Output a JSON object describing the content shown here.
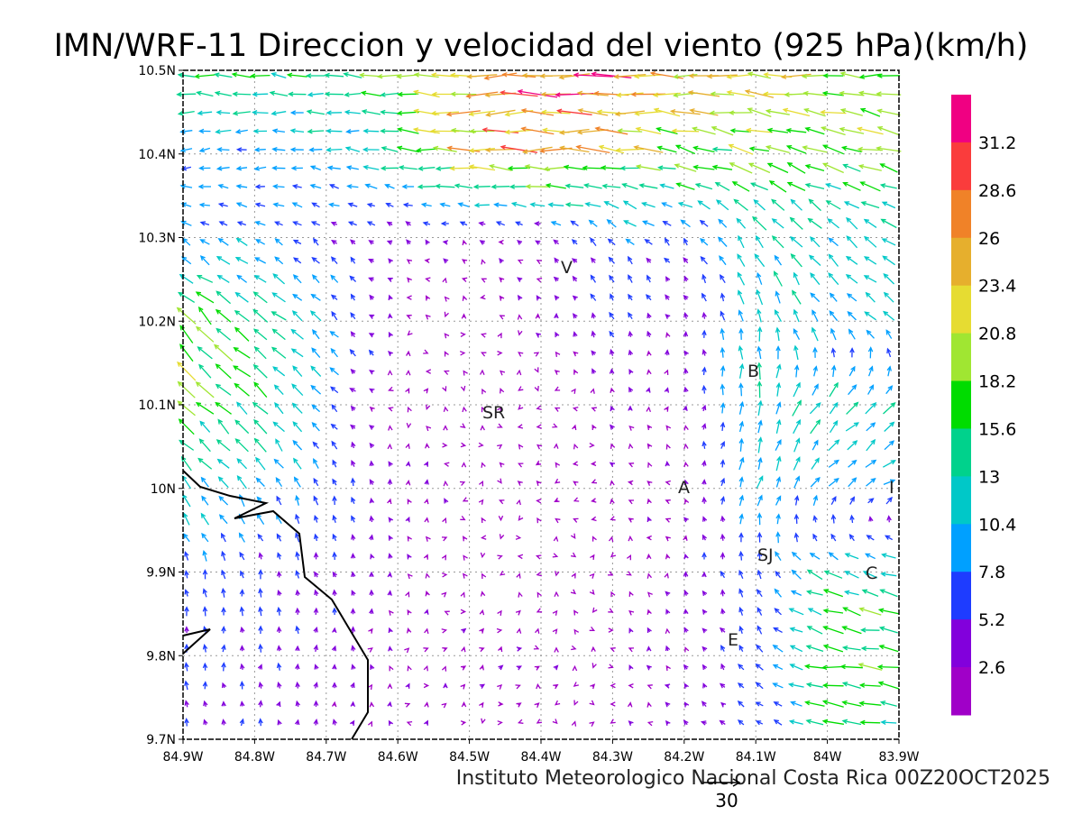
{
  "title": "IMN/WRF-11 Direccion y velocidad del viento (925 hPa)(km/h)",
  "footer": "Instituto Meteorologico Nacional Costa Rica 00Z20OCT2025",
  "reference_vector": {
    "value": 30,
    "label": "30"
  },
  "chart_data": {
    "type": "vector-field",
    "units": "km/h",
    "level": "925 hPa",
    "lon_ticks": [
      "84.9W",
      "84.8W",
      "84.7W",
      "84.6W",
      "84.5W",
      "84.4W",
      "84.3W",
      "84.2W",
      "84.1W",
      "84W",
      "83.9W"
    ],
    "lat_ticks": [
      "10.5N",
      "10.4N",
      "10.3N",
      "10.2N",
      "10.1N",
      "10N",
      "9.9N",
      "9.8N",
      "9.7N"
    ],
    "lon_range": [
      -84.9,
      -83.9
    ],
    "lat_range": [
      9.7,
      10.5
    ],
    "grid_note": "u,v (km/h) at lat rows 10.5N..9.7N, lon cols 84.9W..83.9W",
    "u": [
      [
        -16,
        -15,
        -14,
        -18,
        -25,
        -29,
        -28,
        -24,
        -22,
        -20,
        -20
      ],
      [
        -9,
        -9,
        -10,
        -14,
        -24,
        -26,
        -22,
        -18,
        -17,
        -17,
        -17
      ],
      [
        -7,
        -7,
        -5,
        -2,
        -2,
        -2,
        -6,
        -4,
        -7,
        -9,
        -10
      ],
      [
        -14,
        -12,
        -6,
        -1,
        0,
        -1,
        -2,
        -1,
        -2,
        -6,
        -8
      ],
      [
        -12,
        -11,
        -6,
        0,
        1,
        0,
        -1,
        0,
        2,
        8,
        10
      ],
      [
        -8,
        -6,
        -2,
        0,
        0,
        -1,
        -1,
        -1,
        3,
        6,
        8
      ],
      [
        -2,
        -1,
        -1,
        0,
        0,
        0,
        0,
        -1,
        -2,
        -12,
        -14
      ],
      [
        0,
        0,
        0,
        0,
        2,
        1,
        0,
        -2,
        -4,
        -18,
        -16
      ],
      [
        0,
        0,
        0,
        0,
        1,
        0,
        0,
        -2,
        -4,
        -14,
        -14
      ]
    ],
    "v": [
      [
        1,
        1,
        1,
        1,
        0,
        0,
        0,
        0,
        1,
        1,
        1
      ],
      [
        -1,
        -1,
        1,
        2,
        1,
        0,
        2,
        4,
        5,
        5,
        4
      ],
      [
        4,
        4,
        4,
        2,
        1,
        2,
        6,
        4,
        10,
        8,
        6
      ],
      [
        12,
        10,
        6,
        1,
        1,
        1,
        5,
        3,
        12,
        8,
        6
      ],
      [
        12,
        11,
        6,
        0,
        0,
        0,
        2,
        2,
        12,
        10,
        8
      ],
      [
        9,
        8,
        6,
        3,
        1,
        0,
        1,
        2,
        10,
        6,
        4
      ],
      [
        7,
        6,
        5,
        2,
        0,
        0,
        0,
        3,
        6,
        6,
        4
      ],
      [
        6,
        5,
        4,
        1,
        2,
        1,
        1,
        3,
        5,
        2,
        3
      ],
      [
        5,
        4,
        3,
        1,
        1,
        0,
        0,
        2,
        3,
        2,
        2
      ]
    ],
    "colorbar": {
      "levels": [
        "2.6",
        "5.2",
        "7.8",
        "10.4",
        "13",
        "15.6",
        "18.2",
        "20.8",
        "23.4",
        "26",
        "28.6",
        "31.2"
      ],
      "colors": [
        "#a000c8",
        "#8200dc",
        "#1e3cff",
        "#00a0ff",
        "#00c8c8",
        "#00d28c",
        "#00dc00",
        "#a0e632",
        "#e6dc32",
        "#e6af2d",
        "#f08228",
        "#fa3c3c",
        "#f00082"
      ]
    },
    "places": [
      "V",
      "SR",
      "B",
      "A",
      "I",
      "SJ",
      "C",
      "E"
    ]
  }
}
